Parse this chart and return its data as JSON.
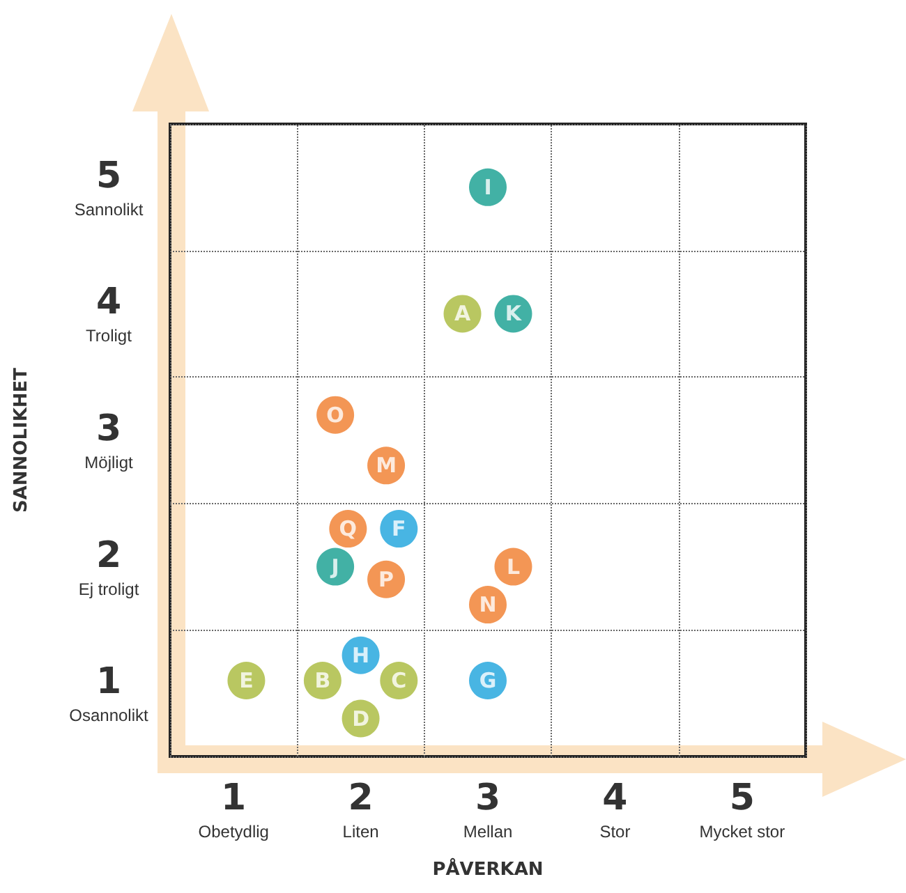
{
  "chart_data": {
    "type": "scatter",
    "xlabel": "PÅVERKAN",
    "ylabel": "SANNOLIKHET",
    "marker": "circle",
    "grid": true,
    "xlim": [
      0.5,
      5.5
    ],
    "ylim": [
      0.5,
      5.5
    ],
    "xticks": [
      {
        "value": 0.5,
        "label": null
      },
      {
        "value": 1,
        "label": "1\nObetydlig"
      },
      {
        "value": 1.5,
        "label": null
      },
      {
        "value": 2,
        "label": "2\nLiten"
      },
      {
        "value": 2.5,
        "label": null
      },
      {
        "value": 3,
        "label": "3\nMellan"
      },
      {
        "value": 3.5,
        "label": null
      },
      {
        "value": 4,
        "label": "4\nStor"
      },
      {
        "value": 4.5,
        "label": null
      },
      {
        "value": 5,
        "label": "5\nMycket stor"
      },
      {
        "value": 5.5,
        "label": null
      }
    ],
    "yticks": [
      {
        "value": 0.5,
        "label": null
      },
      {
        "value": 1,
        "label": "1\nOsannolikt"
      },
      {
        "value": 1.5,
        "label": null
      },
      {
        "value": 2,
        "label": "2\nEj troligt"
      },
      {
        "value": 2.5,
        "label": null
      },
      {
        "value": 3,
        "label": "3\nMöjligt"
      },
      {
        "value": 3.5,
        "label": null
      },
      {
        "value": 4,
        "label": "4\nTroligt"
      },
      {
        "value": 4.5,
        "label": null
      },
      {
        "value": 5,
        "label": "5\nSannolikt"
      },
      {
        "value": 5.5,
        "label": null
      }
    ],
    "series": [
      {
        "color": "#a8b93a",
        "x": [
          2.8,
          1.1,
          1.7,
          2.3,
          2.0
        ],
        "values": [
          4.0,
          1.1,
          1.1,
          1.1,
          0.8
        ],
        "value_labels": [
          "A",
          "E",
          "B",
          "C",
          "D"
        ]
      },
      {
        "color": "#139e8e",
        "x": [
          3.0,
          3.2,
          1.8
        ],
        "values": [
          5.0,
          4.0,
          2.0
        ],
        "value_labels": [
          "I",
          "K",
          "J"
        ]
      },
      {
        "color": "#f07c2a",
        "x": [
          1.8,
          2.2,
          1.9,
          2.2,
          3.2,
          3.0
        ],
        "values": [
          3.2,
          2.8,
          2.3,
          1.9,
          2.0,
          1.7
        ],
        "value_labels": [
          "O",
          "M",
          "Q",
          "P",
          "L",
          "N"
        ]
      },
      {
        "color": "#1aa3dc",
        "x": [
          2.3,
          2.0,
          3.0
        ],
        "values": [
          2.3,
          1.3,
          1.1
        ],
        "value_labels": [
          "F",
          "H",
          "G"
        ]
      }
    ]
  }
}
